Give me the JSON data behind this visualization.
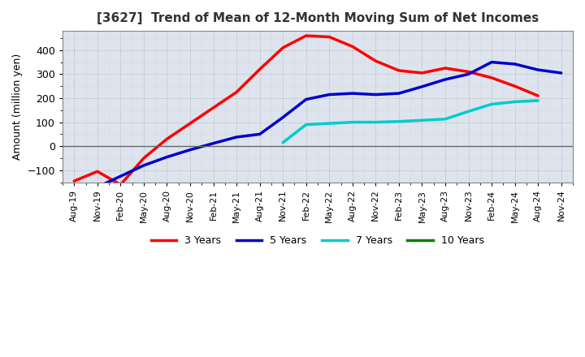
{
  "title": "[3627]  Trend of Mean of 12-Month Moving Sum of Net Incomes",
  "ylabel": "Amount (million yen)",
  "background_color": "#ffffff",
  "plot_bg_color": "#dde4ee",
  "grid_color": "#ffffff",
  "ylim": [
    -150,
    480
  ],
  "yticks": [
    -100,
    0,
    100,
    200,
    300,
    400
  ],
  "x_labels": [
    "Aug-19",
    "Nov-19",
    "Feb-20",
    "May-20",
    "Aug-20",
    "Nov-20",
    "Feb-21",
    "May-21",
    "Aug-21",
    "Nov-21",
    "Feb-22",
    "May-22",
    "Aug-22",
    "Nov-22",
    "Feb-23",
    "May-23",
    "Aug-23",
    "Nov-23",
    "Feb-24",
    "May-24",
    "Aug-24",
    "Nov-24"
  ],
  "series": {
    "3 Years": {
      "color": "#ff0000",
      "data_x": [
        0,
        1,
        2,
        3,
        4,
        5,
        6,
        7,
        8,
        9,
        10,
        11,
        12,
        13,
        14,
        15,
        16,
        17,
        18,
        19,
        20
      ],
      "data_y": [
        -145,
        -105,
        -160,
        -50,
        30,
        95,
        160,
        225,
        320,
        410,
        460,
        455,
        415,
        355,
        315,
        305,
        325,
        310,
        285,
        250,
        210
      ]
    },
    "5 Years": {
      "color": "#0000cc",
      "data_x": [
        1,
        2,
        3,
        4,
        5,
        6,
        7,
        8,
        9,
        10,
        11,
        12,
        13,
        14,
        15,
        16,
        17,
        18,
        19,
        20,
        21
      ],
      "data_y": [
        -170,
        -125,
        -80,
        -45,
        -15,
        12,
        38,
        50,
        120,
        195,
        215,
        220,
        215,
        220,
        248,
        278,
        300,
        350,
        342,
        318,
        305
      ]
    },
    "7 Years": {
      "color": "#00cccc",
      "data_x": [
        9,
        10,
        11,
        12,
        13,
        14,
        15,
        16,
        17,
        18,
        19,
        20
      ],
      "data_y": [
        15,
        90,
        95,
        100,
        100,
        103,
        108,
        113,
        145,
        175,
        185,
        190
      ]
    },
    "10 Years": {
      "color": "#008000",
      "data_x": [],
      "data_y": []
    }
  },
  "legend_entries": [
    "3 Years",
    "5 Years",
    "7 Years",
    "10 Years"
  ],
  "legend_colors": [
    "#ff0000",
    "#0000cc",
    "#00cccc",
    "#008000"
  ]
}
